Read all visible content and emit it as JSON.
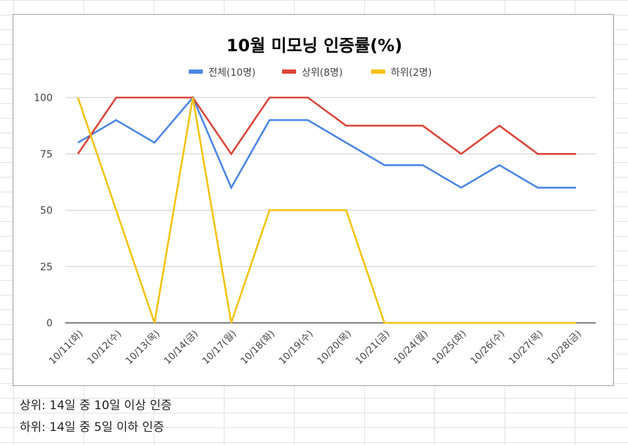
{
  "chart_data": {
    "type": "line",
    "title": "10월 미모닝 인증률(%)",
    "categories": [
      "10/11(화)",
      "10/12(수)",
      "10/13(목)",
      "10/14(금)",
      "10/17(월)",
      "10/18(화)",
      "10/19(수)",
      "10/20(목)",
      "10/21(금)",
      "10/24(월)",
      "10/25(화)",
      "10/26(수)",
      "10/27(목)",
      "10/28(금)"
    ],
    "ylim": [
      0,
      100
    ],
    "yticks": [
      0,
      25,
      50,
      75,
      100
    ],
    "grid": true,
    "legend_position": "top",
    "series": [
      {
        "name": "전체(10명)",
        "color": "#4a86e8",
        "values": [
          80,
          90,
          80,
          100,
          60,
          90,
          90,
          80,
          70,
          70,
          60,
          70,
          60,
          60
        ]
      },
      {
        "name": "상위(8명)",
        "color": "#db4437",
        "values": [
          75,
          100,
          100,
          100,
          75,
          100,
          100,
          87.5,
          87.5,
          87.5,
          75,
          87.5,
          75,
          75
        ]
      },
      {
        "name": "하위(2명)",
        "color": "#f4c20d",
        "values": [
          100,
          50,
          0,
          100,
          0,
          50,
          50,
          50,
          0,
          0,
          0,
          0,
          0,
          0
        ]
      }
    ]
  },
  "notes": {
    "line1": "상위: 14일 중 10일 이상 인증",
    "line2": "하위: 14일 중 5일 이하 인증"
  }
}
